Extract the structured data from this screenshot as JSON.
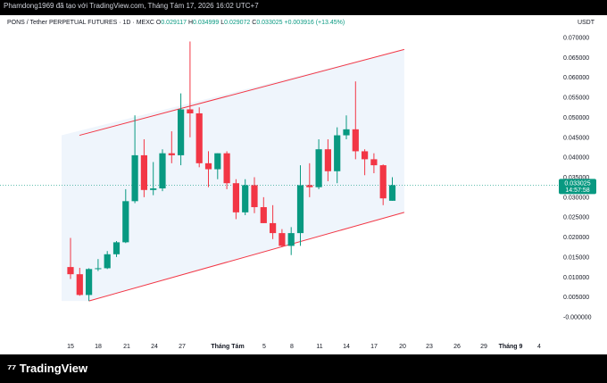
{
  "header": {
    "watermark": "Phamdong1969 đã tạo với TradingView.com, Tháng Tám 17, 2026 16:02 UTC+7",
    "symbol": "PONS / Tether PERPETUAL FUTURES · 1D · MEXC",
    "open_label": "O",
    "open": "0.029117",
    "high_label": "H",
    "high": "0.034999",
    "low_label": "L",
    "low": "0.029072",
    "close_label": "C",
    "close": "0.033025",
    "change": "+0.003916 (+13.45%)",
    "currency": "USDT"
  },
  "price_tag": {
    "price": "0.033025",
    "countdown": "14:57:58"
  },
  "footer": {
    "brand": "TradingView",
    "logo": "tradingview-logo-icon"
  },
  "colors": {
    "up": "#089981",
    "down": "#f23645",
    "channel": "#f23645",
    "channel_fill": "#e9f1fb"
  },
  "chart_data": {
    "type": "candlestick",
    "y_ticks": [
      "0.070000",
      "0.065000",
      "0.060000",
      "0.055000",
      "0.050000",
      "0.045000",
      "0.040000",
      "0.035000",
      "0.030000",
      "0.025000",
      "0.020000",
      "0.015000",
      "0.010000",
      "0.005000",
      "-0.000000"
    ],
    "ylim": [
      -0.001,
      0.072
    ],
    "x_ticks": [
      "15",
      "18",
      "21",
      "24",
      "27",
      "Tháng Tám",
      "5",
      "8",
      "11",
      "14",
      "17",
      "20",
      "23",
      "26",
      "29",
      "Tháng 9",
      "4"
    ],
    "candles": [
      {
        "o": 0.0125,
        "h": 0.0198,
        "l": 0.0095,
        "c": 0.0107
      },
      {
        "o": 0.0107,
        "h": 0.0123,
        "l": 0.0053,
        "c": 0.0055
      },
      {
        "o": 0.0055,
        "h": 0.0122,
        "l": 0.004,
        "c": 0.012
      },
      {
        "o": 0.012,
        "h": 0.0145,
        "l": 0.0115,
        "c": 0.0122
      },
      {
        "o": 0.0122,
        "h": 0.0165,
        "l": 0.012,
        "c": 0.0157
      },
      {
        "o": 0.0157,
        "h": 0.019,
        "l": 0.015,
        "c": 0.0187
      },
      {
        "o": 0.0187,
        "h": 0.032,
        "l": 0.0185,
        "c": 0.029
      },
      {
        "o": 0.029,
        "h": 0.0505,
        "l": 0.0285,
        "c": 0.0405
      },
      {
        "o": 0.0405,
        "h": 0.0445,
        "l": 0.03,
        "c": 0.0318
      },
      {
        "o": 0.0318,
        "h": 0.0388,
        "l": 0.0305,
        "c": 0.0322
      },
      {
        "o": 0.0322,
        "h": 0.042,
        "l": 0.0315,
        "c": 0.041
      },
      {
        "o": 0.041,
        "h": 0.0465,
        "l": 0.0385,
        "c": 0.0405
      },
      {
        "o": 0.0405,
        "h": 0.056,
        "l": 0.038,
        "c": 0.052
      },
      {
        "o": 0.052,
        "h": 0.069,
        "l": 0.045,
        "c": 0.051
      },
      {
        "o": 0.051,
        "h": 0.0525,
        "l": 0.0375,
        "c": 0.0385
      },
      {
        "o": 0.0385,
        "h": 0.0415,
        "l": 0.0325,
        "c": 0.037
      },
      {
        "o": 0.037,
        "h": 0.041,
        "l": 0.0345,
        "c": 0.041
      },
      {
        "o": 0.041,
        "h": 0.0415,
        "l": 0.032,
        "c": 0.0335
      },
      {
        "o": 0.0335,
        "h": 0.0345,
        "l": 0.0245,
        "c": 0.0262
      },
      {
        "o": 0.0262,
        "h": 0.0345,
        "l": 0.0255,
        "c": 0.033
      },
      {
        "o": 0.033,
        "h": 0.035,
        "l": 0.026,
        "c": 0.0275
      },
      {
        "o": 0.0275,
        "h": 0.03,
        "l": 0.0235,
        "c": 0.0235
      },
      {
        "o": 0.0235,
        "h": 0.028,
        "l": 0.0195,
        "c": 0.021
      },
      {
        "o": 0.021,
        "h": 0.022,
        "l": 0.0175,
        "c": 0.0178
      },
      {
        "o": 0.0178,
        "h": 0.0225,
        "l": 0.0155,
        "c": 0.021
      },
      {
        "o": 0.021,
        "h": 0.038,
        "l": 0.0178,
        "c": 0.033
      },
      {
        "o": 0.033,
        "h": 0.0385,
        "l": 0.03,
        "c": 0.0325
      },
      {
        "o": 0.0325,
        "h": 0.0445,
        "l": 0.032,
        "c": 0.042
      },
      {
        "o": 0.042,
        "h": 0.0445,
        "l": 0.034,
        "c": 0.0365
      },
      {
        "o": 0.0365,
        "h": 0.0475,
        "l": 0.0335,
        "c": 0.0455
      },
      {
        "o": 0.0455,
        "h": 0.0505,
        "l": 0.0445,
        "c": 0.047
      },
      {
        "o": 0.047,
        "h": 0.059,
        "l": 0.0395,
        "c": 0.0415
      },
      {
        "o": 0.0415,
        "h": 0.042,
        "l": 0.0355,
        "c": 0.0395
      },
      {
        "o": 0.0395,
        "h": 0.041,
        "l": 0.036,
        "c": 0.038
      },
      {
        "o": 0.038,
        "h": 0.0382,
        "l": 0.028,
        "c": 0.0297
      },
      {
        "o": 0.0291,
        "h": 0.035,
        "l": 0.0291,
        "c": 0.033
      }
    ],
    "channel": {
      "upper": [
        [
          0,
          0.0455
        ],
        [
          36.3,
          0.067
        ]
      ],
      "lower": [
        [
          2,
          0.004
        ],
        [
          36.3,
          0.0262
        ]
      ]
    },
    "last_price": 0.033025
  }
}
